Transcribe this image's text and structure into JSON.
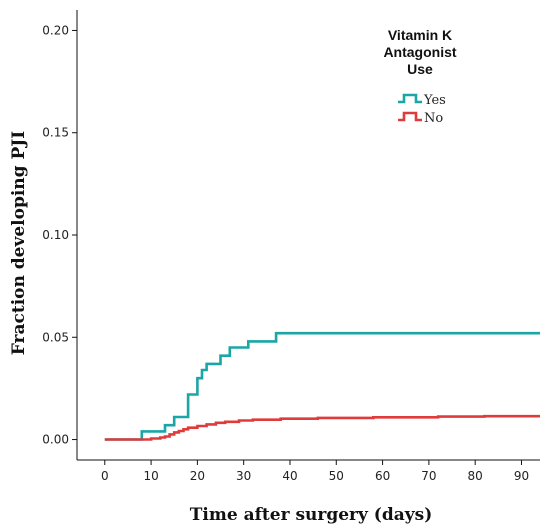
{
  "chart_data": {
    "type": "line",
    "step": true,
    "xlabel": "Time after surgery (days)",
    "ylabel": "Fraction developing PJI",
    "xlim": [
      -6,
      94
    ],
    "ylim": [
      -0.01,
      0.21
    ],
    "xticks": [
      0,
      10,
      20,
      30,
      40,
      50,
      60,
      70,
      80,
      90
    ],
    "yticks": [
      0.0,
      0.05,
      0.1,
      0.15,
      0.2
    ],
    "ytick_labels": [
      "0.00",
      "0.05",
      "0.10",
      "0.15",
      "0.20"
    ],
    "grid": false,
    "legend": {
      "title_lines": [
        "Vitamin K",
        "Antagonist",
        "Use"
      ],
      "placement": "top-right"
    },
    "series": [
      {
        "name": "Yes",
        "color": "#1aa6a6",
        "points": [
          [
            0,
            0
          ],
          [
            8,
            0
          ],
          [
            8,
            0.004
          ],
          [
            13,
            0.004
          ],
          [
            13,
            0.007
          ],
          [
            15,
            0.007
          ],
          [
            15,
            0.011
          ],
          [
            18,
            0.011
          ],
          [
            18,
            0.022
          ],
          [
            20,
            0.022
          ],
          [
            20,
            0.03
          ],
          [
            21,
            0.03
          ],
          [
            21,
            0.034
          ],
          [
            22,
            0.034
          ],
          [
            22,
            0.037
          ],
          [
            25,
            0.037
          ],
          [
            25,
            0.041
          ],
          [
            27,
            0.041
          ],
          [
            27,
            0.045
          ],
          [
            31,
            0.045
          ],
          [
            31,
            0.048
          ],
          [
            37,
            0.048
          ],
          [
            37,
            0.052
          ],
          [
            95,
            0.052
          ]
        ]
      },
      {
        "name": "No",
        "color": "#e03b3b",
        "points": [
          [
            0,
            0
          ],
          [
            10,
            0
          ],
          [
            10,
            0.0005
          ],
          [
            12,
            0.0005
          ],
          [
            12,
            0.001
          ],
          [
            13,
            0.001
          ],
          [
            13,
            0.0015
          ],
          [
            14,
            0.0015
          ],
          [
            14,
            0.0025
          ],
          [
            15,
            0.0025
          ],
          [
            15,
            0.0035
          ],
          [
            16,
            0.0035
          ],
          [
            16,
            0.0042
          ],
          [
            17,
            0.0042
          ],
          [
            17,
            0.005
          ],
          [
            18,
            0.005
          ],
          [
            18,
            0.0058
          ],
          [
            20,
            0.0058
          ],
          [
            20,
            0.0066
          ],
          [
            22,
            0.0066
          ],
          [
            22,
            0.0074
          ],
          [
            24,
            0.0074
          ],
          [
            24,
            0.0082
          ],
          [
            26,
            0.0082
          ],
          [
            26,
            0.0087
          ],
          [
            29,
            0.0087
          ],
          [
            29,
            0.0093
          ],
          [
            32,
            0.0093
          ],
          [
            32,
            0.0097
          ],
          [
            38,
            0.0097
          ],
          [
            38,
            0.0102
          ],
          [
            46,
            0.0102
          ],
          [
            46,
            0.0106
          ],
          [
            58,
            0.0106
          ],
          [
            58,
            0.0109
          ],
          [
            72,
            0.0109
          ],
          [
            72,
            0.0112
          ],
          [
            82,
            0.0112
          ],
          [
            82,
            0.0114
          ],
          [
            95,
            0.0114
          ]
        ]
      }
    ]
  }
}
